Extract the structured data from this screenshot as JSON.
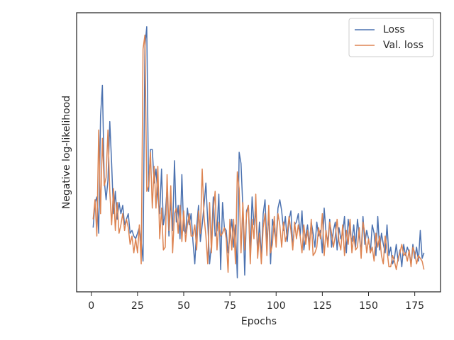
{
  "chart_data": {
    "type": "line",
    "xlabel": "Epochs",
    "ylabel": "Negative log-likelihood",
    "x": [
      1,
      2,
      3,
      4,
      5,
      6,
      7,
      8,
      9,
      10,
      11,
      12,
      13,
      14,
      15,
      16,
      17,
      18,
      19,
      20,
      21,
      22,
      23,
      24,
      25,
      26,
      27,
      28,
      29,
      30,
      31,
      32,
      33,
      34,
      35,
      36,
      37,
      38,
      39,
      40,
      41,
      42,
      43,
      44,
      45,
      46,
      47,
      48,
      49,
      50,
      51,
      52,
      53,
      54,
      55,
      56,
      57,
      58,
      59,
      60,
      61,
      62,
      63,
      64,
      65,
      66,
      67,
      68,
      69,
      70,
      71,
      72,
      73,
      74,
      75,
      76,
      77,
      78,
      79,
      80,
      81,
      82,
      83,
      84,
      85,
      86,
      87,
      88,
      89,
      90,
      91,
      92,
      93,
      94,
      95,
      96,
      97,
      98,
      99,
      100,
      101,
      102,
      103,
      104,
      105,
      106,
      107,
      108,
      109,
      110,
      111,
      112,
      113,
      114,
      115,
      116,
      117,
      118,
      119,
      120,
      121,
      122,
      123,
      124,
      125,
      126,
      127,
      128,
      129,
      130,
      131,
      132,
      133,
      134,
      135,
      136,
      137,
      138,
      139,
      140,
      141,
      142,
      143,
      144,
      145,
      146,
      147,
      148,
      149,
      150,
      151,
      152,
      153,
      154,
      155,
      156,
      157,
      158,
      159,
      160,
      161,
      162,
      163,
      164,
      165,
      166,
      167,
      168,
      169,
      170,
      171,
      172,
      173,
      174,
      175,
      176,
      177,
      178,
      179,
      180
    ],
    "series": [
      {
        "name": "Loss",
        "color": "#4c72b0",
        "values": [
          23,
          32,
          34,
          21,
          63,
          74,
          40,
          33,
          40,
          61,
          46,
          28,
          36,
          26,
          32,
          28,
          31,
          24,
          26,
          28,
          21,
          22,
          20,
          19,
          21,
          23,
          18,
          11,
          88,
          95,
          36,
          51,
          51,
          39,
          44,
          34,
          28,
          44,
          24,
          28,
          37,
          20,
          33,
          22,
          47,
          25,
          31,
          19,
          42,
          22,
          21,
          30,
          24,
          28,
          18,
          10,
          23,
          31,
          18,
          24,
          31,
          39,
          25,
          10,
          17,
          34,
          20,
          22,
          35,
          8,
          32,
          23,
          22,
          14,
          20,
          26,
          16,
          24,
          5,
          50,
          46,
          30,
          6,
          29,
          31,
          14,
          34,
          24,
          29,
          14,
          25,
          12,
          28,
          33,
          17,
          28,
          10,
          26,
          22,
          18,
          30,
          33,
          29,
          22,
          27,
          18,
          26,
          29,
          16,
          24,
          25,
          28,
          20,
          29,
          15,
          20,
          24,
          17,
          25,
          21,
          16,
          25,
          20,
          22,
          14,
          30,
          21,
          18,
          26,
          16,
          22,
          25,
          15,
          23,
          19,
          21,
          27,
          14,
          26,
          21,
          18,
          24,
          16,
          26,
          20,
          14,
          27,
          17,
          22,
          19,
          14,
          24,
          21,
          13,
          27,
          15,
          21,
          17,
          14,
          24,
          13,
          16,
          10,
          12,
          17,
          11,
          15,
          9,
          17,
          13,
          16,
          14,
          10,
          17,
          12,
          16,
          11,
          22,
          12,
          14
        ]
      },
      {
        "name": "Val. loss",
        "color": "#dd8452",
        "values": [
          26,
          33,
          20,
          58,
          28,
          55,
          38,
          41,
          58,
          36,
          24,
          37,
          22,
          32,
          21,
          24,
          28,
          22,
          26,
          23,
          17,
          20,
          14,
          19,
          14,
          24,
          10,
          87,
          92,
          36,
          38,
          50,
          30,
          45,
          30,
          45,
          19,
          30,
          15,
          16,
          42,
          22,
          38,
          14,
          28,
          30,
          21,
          31,
          18,
          29,
          18,
          24,
          28,
          20,
          20,
          24,
          15,
          29,
          21,
          44,
          27,
          20,
          10,
          32,
          14,
          29,
          36,
          15,
          25,
          20,
          21,
          23,
          19,
          7,
          26,
          15,
          26,
          10,
          43,
          37,
          14,
          32,
          15,
          28,
          31,
          10,
          26,
          19,
          35,
          12,
          21,
          10,
          23,
          28,
          13,
          31,
          14,
          17,
          27,
          16,
          28,
          24,
          16,
          25,
          18,
          21,
          27,
          22,
          15,
          25,
          19,
          24,
          20,
          14,
          24,
          17,
          22,
          15,
          26,
          13,
          14,
          16,
          23,
          19,
          28,
          13,
          22,
          16,
          25,
          21,
          16,
          20,
          26,
          18,
          15,
          24,
          13,
          22,
          17,
          26,
          14,
          20,
          15,
          16,
          23,
          12,
          25,
          21,
          14,
          19,
          14,
          16,
          11,
          21,
          16,
          20,
          13,
          10,
          20,
          15,
          9,
          9,
          13,
          11,
          8,
          12,
          14,
          17,
          13,
          14,
          11,
          15,
          9,
          16,
          14,
          10,
          13,
          12,
          11,
          8
        ]
      }
    ],
    "xlim": [
      -7.95,
      188.95
    ],
    "xticks": [
      0,
      25,
      50,
      75,
      100,
      125,
      150,
      175
    ],
    "ylim": [
      0,
      100
    ],
    "legend": "upper right",
    "grid": false
  }
}
